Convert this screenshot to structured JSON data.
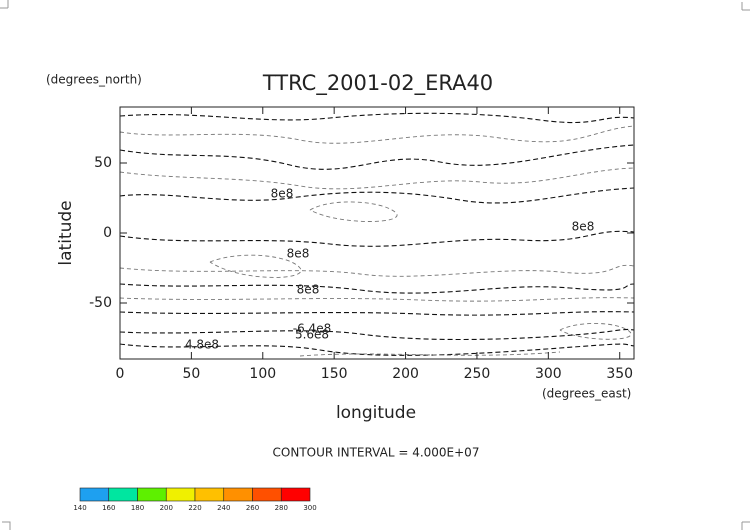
{
  "chart_data": {
    "type": "contour",
    "title": "TTRC_2001-02_ERA40",
    "y_unit": "(degrees_north)",
    "ylabel": "latitude",
    "xlabel": "longitude",
    "x_unit": "(degrees_east)",
    "note": "CONTOUR INTERVAL = 4.000E+07",
    "contour_labels": [
      "8e8",
      "8e8",
      "8e8",
      "-6.4e8",
      "5.6e8",
      "4.8e8",
      "8e8"
    ],
    "xlim": [
      0,
      360
    ],
    "xticks": [
      0,
      50,
      100,
      150,
      200,
      250,
      300,
      350
    ],
    "ylim": [
      -90,
      90
    ],
    "yticks": [
      -50,
      0,
      50
    ],
    "colorbar": {
      "ticks": [
        140,
        160,
        180,
        200,
        220,
        240,
        260,
        280,
        300
      ],
      "colors": [
        "#1ea0f0",
        "#00e6a0",
        "#5ef000",
        "#f0f000",
        "#ffc000",
        "#ff9000",
        "#ff5000",
        "#ff0000"
      ]
    }
  }
}
